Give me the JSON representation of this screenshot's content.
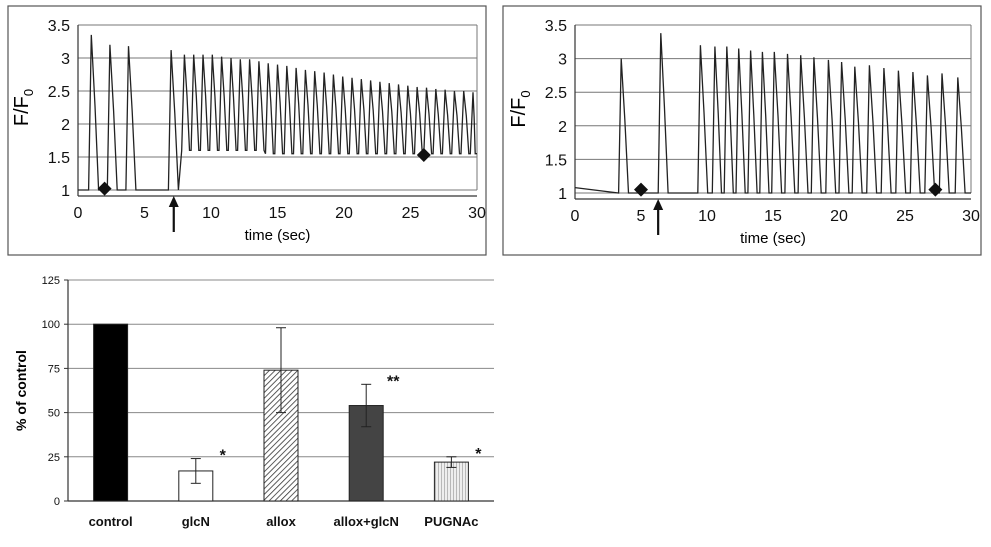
{
  "chart_data": [
    {
      "type": "line",
      "panel": "top-left",
      "title": "",
      "xlabel": "time (sec)",
      "ylabel_main": "F/F",
      "ylabel_sub": "0",
      "xlim": [
        0,
        30
      ],
      "ylim": [
        1,
        3.5
      ],
      "xticks": [
        "0",
        "5",
        "10",
        "15",
        "20",
        "25",
        "30"
      ],
      "yticks": [
        "1",
        "1.5",
        "2",
        "2.5",
        "3",
        "3.5"
      ],
      "grid": "horizontal",
      "baseline": 1.0,
      "series_color": "#222222",
      "peaks": [
        {
          "t": 1.0,
          "peak": 3.35,
          "min": 1.0
        },
        {
          "t": 2.4,
          "peak": 3.2,
          "min": 1.0
        },
        {
          "t": 3.8,
          "peak": 3.18,
          "min": 1.0
        },
        {
          "t": 7.0,
          "peak": 3.12,
          "min": 1.0
        },
        {
          "t": 8.0,
          "peak": 3.05,
          "min": 1.6
        },
        {
          "t": 8.7,
          "peak": 3.05,
          "min": 1.6
        },
        {
          "t": 9.4,
          "peak": 3.05,
          "min": 1.6
        },
        {
          "t": 10.1,
          "peak": 3.05,
          "min": 1.6
        },
        {
          "t": 10.8,
          "peak": 3.02,
          "min": 1.6
        },
        {
          "t": 11.5,
          "peak": 3.0,
          "min": 1.6
        },
        {
          "t": 12.2,
          "peak": 2.98,
          "min": 1.6
        },
        {
          "t": 12.9,
          "peak": 2.98,
          "min": 1.6
        },
        {
          "t": 13.6,
          "peak": 2.95,
          "min": 1.6
        },
        {
          "t": 14.3,
          "peak": 2.92,
          "min": 1.55
        },
        {
          "t": 15.0,
          "peak": 2.9,
          "min": 1.55
        },
        {
          "t": 15.7,
          "peak": 2.88,
          "min": 1.55
        },
        {
          "t": 16.4,
          "peak": 2.85,
          "min": 1.55
        },
        {
          "t": 17.1,
          "peak": 2.82,
          "min": 1.55
        },
        {
          "t": 17.8,
          "peak": 2.8,
          "min": 1.55
        },
        {
          "t": 18.5,
          "peak": 2.78,
          "min": 1.55
        },
        {
          "t": 19.2,
          "peak": 2.75,
          "min": 1.55
        },
        {
          "t": 19.9,
          "peak": 2.72,
          "min": 1.55
        },
        {
          "t": 20.6,
          "peak": 2.7,
          "min": 1.55
        },
        {
          "t": 21.3,
          "peak": 2.68,
          "min": 1.55
        },
        {
          "t": 22.0,
          "peak": 2.66,
          "min": 1.55
        },
        {
          "t": 22.7,
          "peak": 2.64,
          "min": 1.55
        },
        {
          "t": 23.4,
          "peak": 2.62,
          "min": 1.55
        },
        {
          "t": 24.1,
          "peak": 2.6,
          "min": 1.55
        },
        {
          "t": 24.8,
          "peak": 2.58,
          "min": 1.55
        },
        {
          "t": 25.5,
          "peak": 2.56,
          "min": 1.55
        },
        {
          "t": 26.2,
          "peak": 2.55,
          "min": 1.55
        },
        {
          "t": 26.9,
          "peak": 2.53,
          "min": 1.55
        },
        {
          "t": 27.6,
          "peak": 2.52,
          "min": 1.55
        },
        {
          "t": 28.3,
          "peak": 2.5,
          "min": 1.55
        },
        {
          "t": 29.0,
          "peak": 2.5,
          "min": 1.55
        },
        {
          "t": 29.7,
          "peak": 2.48,
          "min": 1.55
        }
      ],
      "markers": [
        {
          "shape": "diamond",
          "t": 2.0,
          "y": 1.02
        },
        {
          "shape": "diamond",
          "t": 26.0,
          "y": 1.53
        }
      ],
      "arrow_t": 7.2
    },
    {
      "type": "line",
      "panel": "top-right",
      "title": "",
      "xlabel": "time (sec)",
      "ylabel_main": "F/F",
      "ylabel_sub": "0",
      "xlim": [
        0,
        30
      ],
      "ylim": [
        1,
        3.5
      ],
      "xticks": [
        "0",
        "5",
        "10",
        "15",
        "20",
        "25",
        "30"
      ],
      "yticks": [
        "1",
        "1.5",
        "2",
        "2.5",
        "3",
        "3.5"
      ],
      "grid": "horizontal",
      "baseline": 1.08,
      "series_color": "#222222",
      "peaks": [
        {
          "t": 3.5,
          "peak": 3.0,
          "min": 1.0
        },
        {
          "t": 6.5,
          "peak": 3.38,
          "min": 1.0
        },
        {
          "t": 9.5,
          "peak": 3.2,
          "min": 1.0
        },
        {
          "t": 10.6,
          "peak": 3.18,
          "min": 1.0
        },
        {
          "t": 11.5,
          "peak": 3.18,
          "min": 1.0
        },
        {
          "t": 12.4,
          "peak": 3.15,
          "min": 1.0
        },
        {
          "t": 13.3,
          "peak": 3.12,
          "min": 1.0
        },
        {
          "t": 14.2,
          "peak": 3.1,
          "min": 1.0
        },
        {
          "t": 15.1,
          "peak": 3.1,
          "min": 1.0
        },
        {
          "t": 16.1,
          "peak": 3.07,
          "min": 1.0
        },
        {
          "t": 17.1,
          "peak": 3.05,
          "min": 1.0
        },
        {
          "t": 18.1,
          "peak": 3.02,
          "min": 1.0
        },
        {
          "t": 19.2,
          "peak": 2.98,
          "min": 1.0
        },
        {
          "t": 20.2,
          "peak": 2.95,
          "min": 1.0
        },
        {
          "t": 21.2,
          "peak": 2.88,
          "min": 1.0
        },
        {
          "t": 22.3,
          "peak": 2.9,
          "min": 1.0
        },
        {
          "t": 23.4,
          "peak": 2.86,
          "min": 1.0
        },
        {
          "t": 24.5,
          "peak": 2.82,
          "min": 1.0
        },
        {
          "t": 25.6,
          "peak": 2.8,
          "min": 1.0
        },
        {
          "t": 26.7,
          "peak": 2.75,
          "min": 1.0
        },
        {
          "t": 27.8,
          "peak": 2.78,
          "min": 1.0
        },
        {
          "t": 29.0,
          "peak": 2.72,
          "min": 1.0
        }
      ],
      "markers": [
        {
          "shape": "diamond",
          "t": 5.0,
          "y": 1.05
        },
        {
          "shape": "diamond",
          "t": 27.3,
          "y": 1.05
        }
      ],
      "arrow_t": 6.3
    },
    {
      "type": "bar",
      "panel": "bottom-left",
      "title": "",
      "xlabel": "",
      "ylabel": "% of control",
      "ylim": [
        0,
        125
      ],
      "yticks": [
        "0",
        "25",
        "50",
        "75",
        "100",
        "125"
      ],
      "grid": "horizontal",
      "categories": [
        "control",
        "glcN",
        "allox",
        "allox+glcN",
        "PUGNAc"
      ],
      "values": [
        100,
        17,
        74,
        54,
        22
      ],
      "errors": [
        0,
        7,
        24,
        12,
        3
      ],
      "significance": [
        "",
        "*",
        "",
        "**",
        "*"
      ],
      "fills": [
        "solid-black",
        "white",
        "diagonal-hatch",
        "dark-gray",
        "light-vertical-lines"
      ]
    }
  ]
}
